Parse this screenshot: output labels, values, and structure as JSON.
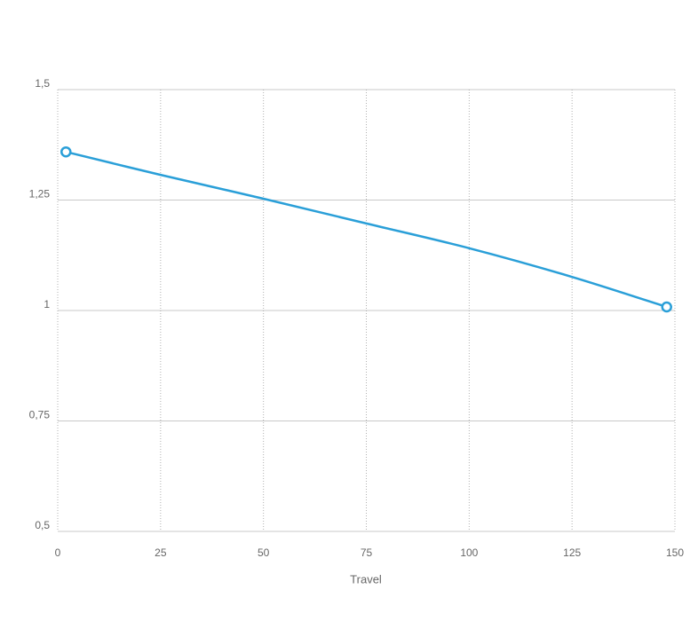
{
  "chart_data": {
    "type": "line",
    "x_label": "Travel",
    "series": [
      {
        "name": "Travel",
        "color": "#2a9fd8",
        "x": [
          2,
          25,
          50,
          75,
          100,
          125,
          148
        ],
        "values": [
          1.359,
          1.307,
          1.253,
          1.197,
          1.141,
          1.076,
          1.008
        ]
      }
    ],
    "xlim": [
      0,
      150
    ],
    "xticks": [
      0,
      25,
      50,
      75,
      100,
      125,
      150
    ],
    "ylim": [
      0.5,
      1.5
    ],
    "yticks": [
      {
        "value": 0.5,
        "label": "0,5"
      },
      {
        "value": 0.75,
        "label": "0,75"
      },
      1,
      {
        "value": 1.25,
        "label": "1,25"
      },
      {
        "value": 1.5,
        "label": "1,5"
      }
    ],
    "grid": true
  }
}
